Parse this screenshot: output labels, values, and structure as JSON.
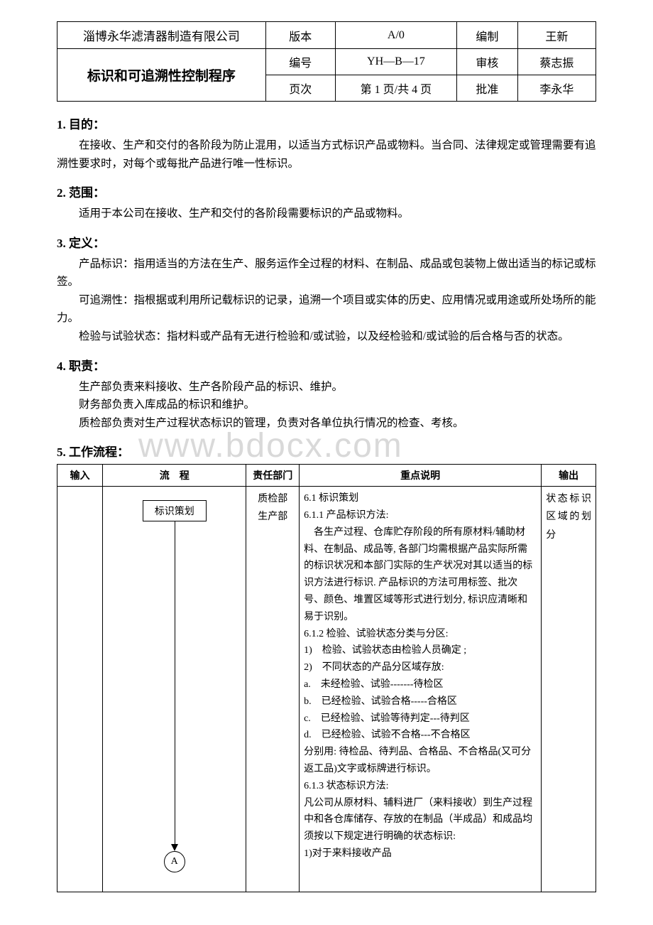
{
  "header": {
    "company": "淄博永华滤清器制造有限公司",
    "title": "标识和可追溯性控制程序",
    "rows": [
      {
        "k": "版本",
        "v": "A/0",
        "k2": "编制",
        "v2": "王新"
      },
      {
        "k": "编号",
        "v": "YH—B—17",
        "k2": "审核",
        "v2": "蔡志振"
      },
      {
        "k": "页次",
        "v": "第 1 页/共 4 页",
        "k2": "批准",
        "v2": "李永华"
      }
    ]
  },
  "sections": [
    {
      "num": "1.",
      "title": "目的：",
      "paras": [
        "在接收、生产和交付的各阶段为防止混用，以适当方式标识产品或物料。当合同、法律规定或管理需要有追溯性要求时，对每个或每批产品进行唯一性标识。"
      ]
    },
    {
      "num": "2.",
      "title": "范围：",
      "paras": [
        "适用于本公司在接收、生产和交付的各阶段需要标识的产品或物料。"
      ]
    },
    {
      "num": "3.",
      "title": "定义：",
      "paras": [
        "产品标识：指用适当的方法在生产、服务运作全过程的材料、在制品、成品或包装物上做出适当的标记或标签。",
        "可追溯性：指根据或利用所记载标识的记录，追溯一个项目或实体的历史、应用情况或用途或所处场所的能力。",
        "检验与试验状态：指材料或产品有无进行检验和/或试验，以及经检验和/或试验的后合格与否的状态。"
      ]
    },
    {
      "num": "4.",
      "title": "职责：",
      "paras": [
        "生产部负责来料接收、生产各阶段产品的标识、维护。",
        "财务部负责入库成品的标识和维护。",
        "质检部负责对生产过程状态标识的管理，负责对各单位执行情况的检查、考核。"
      ]
    }
  ],
  "workflow": {
    "num": "5.",
    "title": "工作流程：",
    "columns": [
      "输入",
      "流　程",
      "责任部门",
      "重点说明",
      "输出"
    ],
    "flow": {
      "box": "标识策划",
      "circle": "A"
    },
    "dept": [
      "质检部",
      "生产部"
    ],
    "output": "状态标识区域的划分",
    "desc_lines": [
      "6.1 标识策划",
      "6.1.1 产品标识方法:",
      "　各生产过程、仓库贮存阶段的所有原材料/辅助材料、在制品、成品等, 各部门均需根据产品实际所需的标识状况和本部门实际的生产状况对其以适当的标识方法进行标识. 产品标识的方法可用标签、批次号、颜色、堆置区域等形式进行划分, 标识应清晰和易于识别。",
      "6.1.2 检验、试验状态分类与分区:",
      "1)　检验、试验状态由检验人员确定 ;",
      "2)　不同状态的产品分区域存放:",
      "a.　未经检验、试验-------待检区",
      "b.　已经检验、试验合格-----合格区",
      "c.　已经检验、试验等待判定---待判区",
      "d.　已经检验、试验不合格---不合格区",
      "分别用: 待检品、待判品、合格品、不合格品(又可分返工品)文字或标牌进行标识。",
      "6.1.3 状态标识方法:",
      "凡公司从原材料、辅料进厂（来料接收）到生产过程中和各仓库储存、存放的在制品（半成品）和成品均须按以下规定进行明确的状态标识:",
      "1)对于来料接收产品"
    ]
  },
  "watermark": "www.bdocx.com"
}
